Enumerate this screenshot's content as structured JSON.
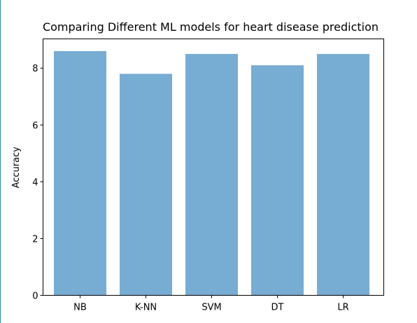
{
  "chart_data": {
    "type": "bar",
    "title": "Comparing Different ML models for heart disease prediction",
    "xlabel": "",
    "ylabel": "Accuracy",
    "categories": [
      "NB",
      "K-NN",
      "SVM",
      "DT",
      "LR"
    ],
    "values": [
      8.6,
      7.8,
      8.5,
      8.1,
      8.5
    ],
    "ylim": [
      0,
      9.03
    ],
    "yticks": [
      0,
      2,
      4,
      6,
      8
    ],
    "grid": false,
    "bar_color": "#77acd3"
  }
}
